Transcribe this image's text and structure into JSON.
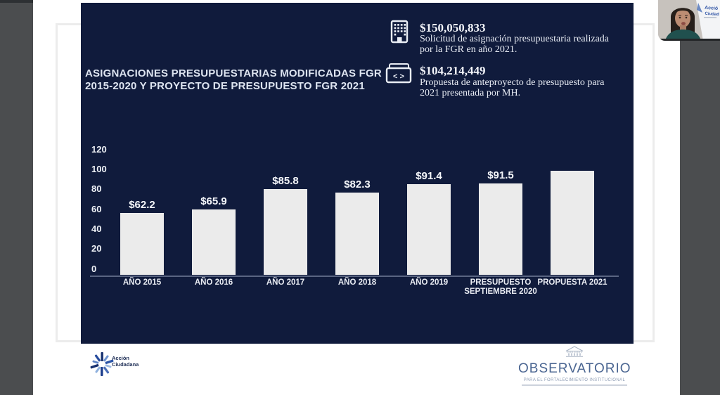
{
  "window": {
    "bg": "#4b4d4f",
    "top_strip": "#2d3033",
    "page_bg": "#ffffff",
    "frame_border": "#ececec"
  },
  "slide": {
    "bg": "#101b3c",
    "title_line1": "ASIGNACIONES PRESUPUESTARIAS MODIFICADAS FGR",
    "title_line2": "2015-2020  Y PROYECTO DE PRESUPUESTO FGR 2021",
    "icon2_glyph": "< >",
    "info_items": [
      {
        "icon": "building-icon",
        "amount": "$150,050,833",
        "description": "Solicitud de asignación presupuestaria realizada por la FGR en año 2021."
      },
      {
        "icon": "code-window-icon",
        "amount": "$104,214,449",
        "description": "Propuesta de anteproyecto de presupuesto para 2021 presentada por MH."
      }
    ]
  },
  "chart_data": {
    "type": "bar",
    "title": "ASIGNACIONES PRESUPUESTARIAS MODIFICADAS FGR 2015-2020 Y PROYECTO DE PRESUPUESTO FGR 2021",
    "categories": [
      "AÑO 2015",
      "AÑO 2016",
      "AÑO 2017",
      "AÑO 2018",
      "AÑO 2019",
      "PRESUPUESTO SEPTIEMBRE 2020",
      "PROPUESTA 2021"
    ],
    "values": [
      62.2,
      65.9,
      85.8,
      82.3,
      91.4,
      91.5,
      104.2
    ],
    "data_labels": [
      "$62.2",
      "$65.9",
      "$85.8",
      "$82.3",
      "$91.4",
      "$91.5",
      ""
    ],
    "xlabel": "",
    "ylabel": "",
    "ylim": [
      0,
      120
    ],
    "yticks": [
      0,
      20,
      40,
      60,
      80,
      100,
      120
    ],
    "bar_color": "#ebebeb",
    "grid": false,
    "legend": false
  },
  "footer": {
    "accion_logo": {
      "line1": "Acción",
      "line2": "Ciudadana"
    },
    "observatorio_logo": {
      "name": "OBSERVATORIO",
      "tagline": "PARA EL FORTALECIMIENTO INSTITUCIONAL"
    }
  },
  "webcam": {
    "banner_line1": "Acció",
    "banner_line2": "Ciudad"
  },
  "colors": {
    "navy": "#101b3c",
    "bar": "#ebebeb",
    "observatorio_blue": "#4a6591",
    "axis_line": "#5a6582"
  }
}
